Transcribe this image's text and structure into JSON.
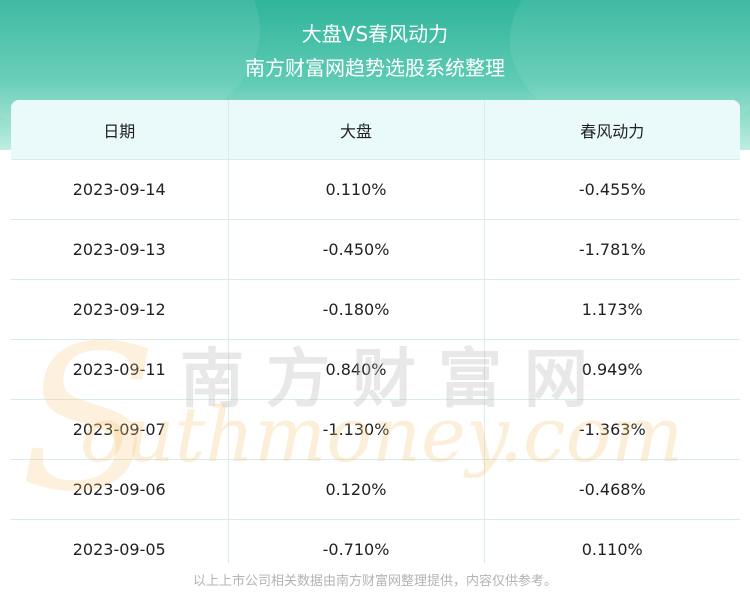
{
  "header": {
    "title": "大盘VS春风动力",
    "subtitle": "南方财富网趋势选股系统整理"
  },
  "table": {
    "columns": [
      "日期",
      "大盘",
      "春风动力"
    ],
    "rows": [
      [
        "2023-09-14",
        "0.110%",
        "-0.455%"
      ],
      [
        "2023-09-13",
        "-0.450%",
        "-1.781%"
      ],
      [
        "2023-09-12",
        "-0.180%",
        "1.173%"
      ],
      [
        "2023-09-11",
        "0.840%",
        "0.949%"
      ],
      [
        "2023-09-07",
        "-1.130%",
        "-1.363%"
      ],
      [
        "2023-09-06",
        "0.120%",
        "-0.468%"
      ],
      [
        "2023-09-05",
        "-0.710%",
        "0.110%"
      ]
    ]
  },
  "watermark": {
    "cn": "南方财富网",
    "en": "outhmoney.com",
    "s": "S"
  },
  "footer": "以上上市公司相关数据由南方财富网整理提供，内容仅供参考。"
}
